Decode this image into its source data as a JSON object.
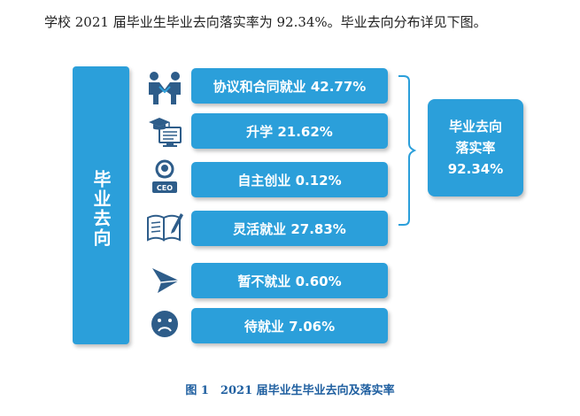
{
  "intro_text": "学校 2021 届毕业生毕业去向落实率为 92.34%。毕业去向分布详见下图。",
  "side_label": "毕业去向",
  "items": [
    {
      "label": "协议和合同就业 42.77%",
      "icon": "handshake-people-icon"
    },
    {
      "label": "升学 21.62%",
      "icon": "graduation-cap-screen-icon"
    },
    {
      "label": "自主创业 0.12%",
      "icon": "ceo-person-icon"
    },
    {
      "label": "灵活就业 27.83%",
      "icon": "book-pen-icon"
    },
    {
      "label": "暂不就业 0.60%",
      "icon": "paper-plane-icon"
    },
    {
      "label": "待就业 7.06%",
      "icon": "sad-face-icon"
    }
  ],
  "summary": {
    "line1": "毕业去向",
    "line2": "落实率",
    "value": "92.34%"
  },
  "caption": "图 1　2021 届毕业生毕业去向及落实率",
  "colors": {
    "accent": "#2b9fda",
    "icon": "#2e5d8a",
    "caption": "#1f5fa0"
  }
}
